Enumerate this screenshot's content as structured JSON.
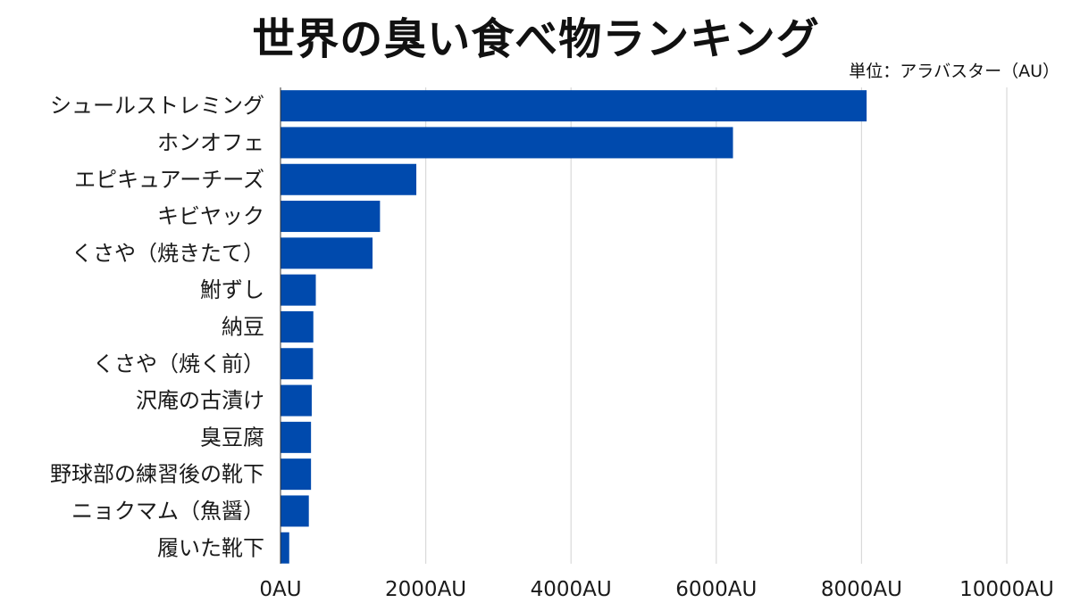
{
  "chart_data": {
    "type": "bar",
    "orientation": "horizontal",
    "title": "世界の臭い食べ物ランキング",
    "unit_note": "単位：アラバスター（AU）",
    "categories": [
      "シュールストレミング",
      "ホンオフェ",
      "エピキュアーチーズ",
      "キビヤック",
      "くさや（焼きたて）",
      "鮒ずし",
      "納豆",
      "くさや（焼く前）",
      "沢庵の古漬け",
      "臭豆腐",
      "野球部の練習後の靴下",
      "ニョクマム（魚醤）",
      "履いた靴下"
    ],
    "values": [
      8070,
      6230,
      1870,
      1370,
      1267,
      486,
      452,
      447,
      430,
      420,
      420,
      390,
      120
    ],
    "xlim": [
      0,
      10000
    ],
    "xticks": [
      0,
      2000,
      4000,
      6000,
      8000,
      10000
    ],
    "tick_labels": [
      "0AU",
      "2000AU",
      "4000AU",
      "6000AU",
      "8000AU",
      "10000AU"
    ],
    "grid": "vertical",
    "colors": {
      "bar": "#004aad",
      "grid": "#d9d9d9",
      "axis": "#333333"
    }
  }
}
